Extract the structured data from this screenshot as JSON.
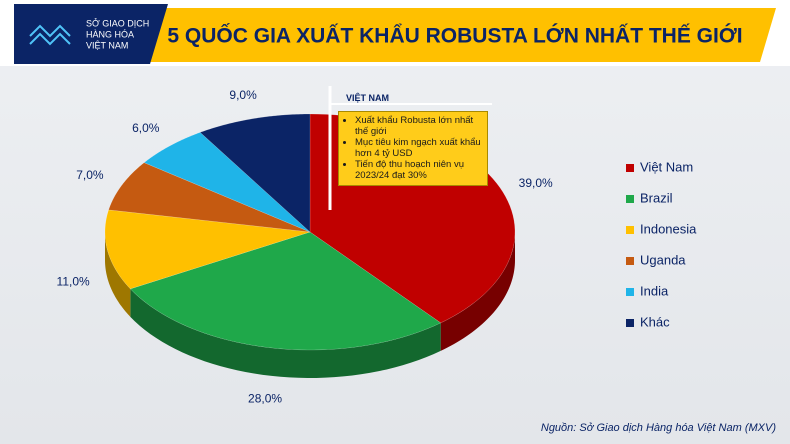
{
  "logo": [
    "SỞ GIAO DỊCH",
    "HÀNG HÓA",
    "VIỆT NAM"
  ],
  "chart_data": {
    "type": "pie",
    "title": "5 QUỐC GIA XUẤT KHẨU ROBUSTA LỚN NHẤT THẾ GIỚI",
    "categories": [
      "Việt Nam",
      "Brazil",
      "Indonesia",
      "Uganda",
      "India",
      "Khác"
    ],
    "values": [
      39,
      28,
      11,
      7,
      6,
      9
    ],
    "value_labels": [
      "39,0%",
      "28,0%",
      "11,0%",
      "7,0%",
      "6,0%",
      "9,0%"
    ],
    "colors": [
      "#c00000",
      "#1fa84a",
      "#ffc000",
      "#c55a11",
      "#1fb4e8",
      "#0b2466"
    ],
    "legend": "right",
    "annotation": {
      "title": "VIỆT NAM",
      "items": [
        "Xuất khẩu Robusta lớn nhất thế giới",
        "Mục tiêu kim ngạch xuất khẩu hơn 4 tỷ USD",
        "Tiến độ thu hoạch niên vụ 2023/24 đạt 30%"
      ]
    }
  },
  "source": "Nguồn: Sở Giao dịch Hàng hóa Việt Nam (MXV)"
}
